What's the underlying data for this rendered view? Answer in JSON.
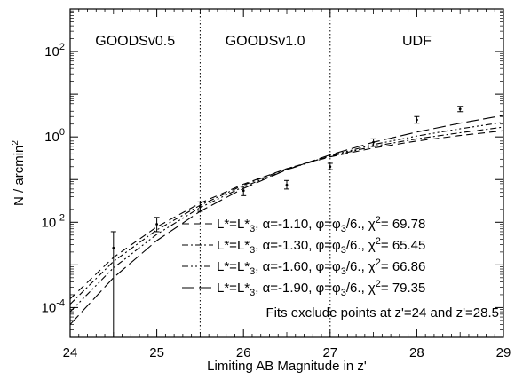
{
  "chart_data": {
    "type": "scatter",
    "xlabel": "Limiting AB Magnitude in z'",
    "ylabel": "N / arcmin²",
    "xlim": [
      24,
      29
    ],
    "ylim": [
      2e-05,
      1000
    ],
    "y_scale": "log",
    "x_ticks": [
      "24",
      "25",
      "26",
      "27",
      "28",
      "29"
    ],
    "y_ticks": [
      {
        "value": 0.0001,
        "base": "10",
        "exp": "-4"
      },
      {
        "value": 0.01,
        "base": "10",
        "exp": "-2"
      },
      {
        "value": 1,
        "base": "10",
        "exp": "0"
      },
      {
        "value": 100,
        "base": "10",
        "exp": "2"
      }
    ],
    "regions": [
      {
        "label": "GOODSv0.5",
        "x_start": 24,
        "x_end": 25.5
      },
      {
        "label": "GOODSv1.0",
        "x_start": 25.5,
        "x_end": 27
      },
      {
        "label": "UDF",
        "x_start": 27,
        "x_end": 29
      }
    ],
    "region_boundaries": [
      25.5,
      27
    ],
    "observed": {
      "x": [
        24.5,
        25,
        25.5,
        26,
        26.5,
        27,
        27.5,
        28,
        28.5
      ],
      "y": [
        0.0025,
        0.009,
        0.023,
        0.055,
        0.075,
        0.2,
        0.75,
        2.5,
        4.5
      ],
      "y_low": [
        1e-06,
        0.006,
        0.018,
        0.042,
        0.06,
        0.17,
        0.6,
        2.1,
        3.9
      ],
      "y_high": [
        0.006,
        0.013,
        0.03,
        0.07,
        0.095,
        0.24,
        0.9,
        3.0,
        5.2
      ]
    },
    "series": [
      {
        "label": {
          "lead": "L*=L*",
          "sub1": "3",
          "alpha": ", α=-1.10, φ=φ",
          "sub2": "3",
          "chi": "/6., χ",
          "sup": "2",
          "tail": "=  69.78"
        },
        "dash": "8,5",
        "x": [
          24,
          24.5,
          25,
          25.5,
          26,
          26.5,
          27,
          27.5,
          28,
          28.5,
          29
        ],
        "y": [
          0.00016,
          0.0015,
          0.0078,
          0.028,
          0.078,
          0.18,
          0.34,
          0.55,
          0.8,
          1.08,
          1.4
        ]
      },
      {
        "label": {
          "lead": "L*=L*",
          "sub1": "3",
          "alpha": ", α=-1.30, φ=φ",
          "sub2": "3",
          "chi": "/6., χ",
          "sup": "2",
          "tail": "=  65.45"
        },
        "dash": "7,3,2,3",
        "x": [
          24,
          24.5,
          25,
          25.5,
          26,
          26.5,
          27,
          27.5,
          28,
          28.5,
          29
        ],
        "y": [
          0.00012,
          0.0012,
          0.0066,
          0.025,
          0.074,
          0.18,
          0.35,
          0.6,
          0.9,
          1.25,
          1.7
        ]
      },
      {
        "label": {
          "lead": "L*=L*",
          "sub1": "3",
          "alpha": ", α=-1.60, φ=φ",
          "sub2": "3",
          "chi": "/6., χ",
          "sup": "2",
          "tail": "=  66.86"
        },
        "dash": "7,3,2,3,2,3,2,3",
        "x": [
          24,
          24.5,
          25,
          25.5,
          26,
          26.5,
          27,
          27.5,
          28,
          28.5,
          29
        ],
        "y": [
          8e-05,
          0.00085,
          0.0052,
          0.022,
          0.068,
          0.17,
          0.36,
          0.66,
          1.05,
          1.55,
          2.2
        ]
      },
      {
        "label": {
          "lead": "L*=L*",
          "sub1": "3",
          "alpha": ", α=-1.90, φ=φ",
          "sub2": "3",
          "chi": "/6., χ",
          "sup": "2",
          "tail": "=  79.35"
        },
        "dash": "14,5",
        "x": [
          24,
          24.5,
          25,
          25.5,
          26,
          26.5,
          27,
          27.5,
          28,
          28.5,
          29
        ],
        "y": [
          4e-05,
          0.0005,
          0.0037,
          0.018,
          0.062,
          0.17,
          0.38,
          0.75,
          1.3,
          2.1,
          3.2
        ]
      }
    ],
    "note": "Fits exclude points at z'=24 and z'=28.5"
  }
}
